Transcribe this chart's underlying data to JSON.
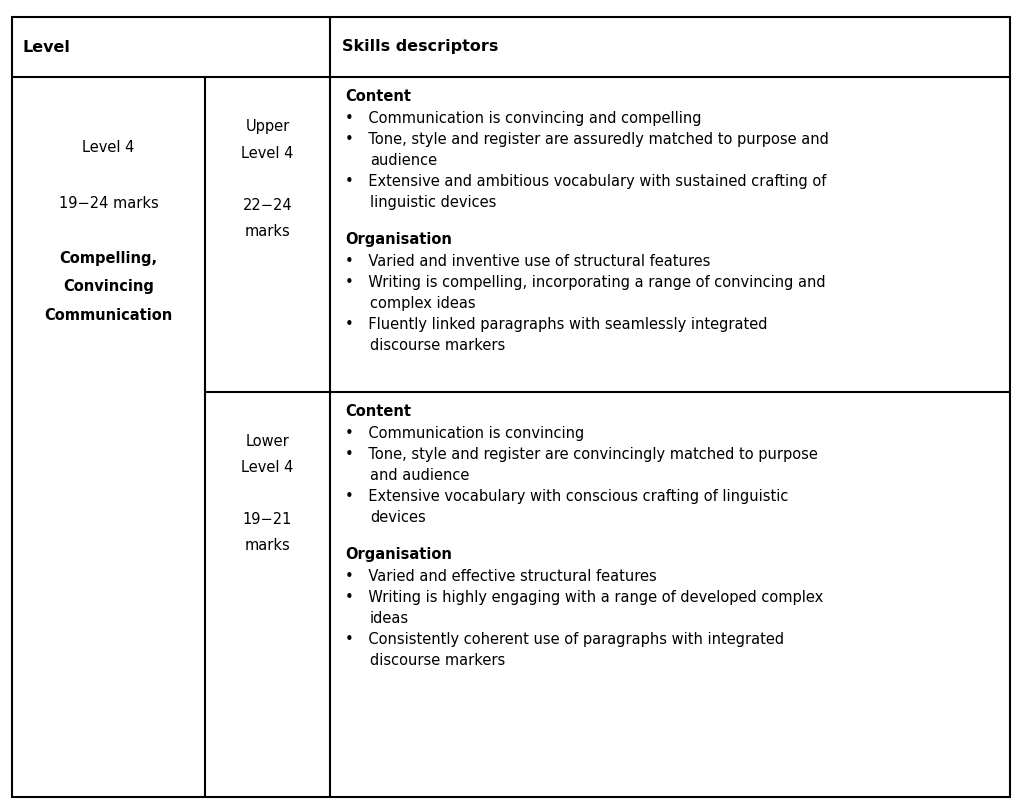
{
  "bg_color": "#ffffff",
  "line_color": "#000000",
  "line_width": 1.5,
  "col1_header": "Level",
  "col3_header": "Skills descriptors",
  "col1_lines": [
    "Level 4",
    "",
    "19−24 marks",
    "",
    "Compelling,",
    "Convincing",
    "Communication"
  ],
  "col1_bold": [
    "Compelling,",
    "Convincing",
    "Communication"
  ],
  "upper_sub_lines": [
    "Upper",
    "Level 4",
    "",
    "22−24",
    "marks"
  ],
  "lower_sub_lines": [
    "Lower",
    "Level 4",
    "",
    "19−21",
    "marks"
  ],
  "upper_content_title1": "Content",
  "upper_content_bullets1": [
    [
      "Communication is convincing and compelling"
    ],
    [
      "Tone, style and register are assuredly matched to purpose and",
      "audience"
    ],
    [
      "Extensive and ambitious vocabulary with sustained crafting of",
      "linguistic devices"
    ]
  ],
  "upper_content_title2": "Organisation",
  "upper_content_bullets2": [
    [
      "Varied and inventive use of structural features"
    ],
    [
      "Writing is compelling, incorporating a range of convincing and",
      "complex ideas"
    ],
    [
      "Fluently linked paragraphs with seamlessly integrated",
      "discourse markers"
    ]
  ],
  "lower_content_title1": "Content",
  "lower_content_bullets1": [
    [
      "Communication is convincing"
    ],
    [
      "Tone, style and register are convincingly matched to purpose",
      "and audience"
    ],
    [
      "Extensive vocabulary with conscious crafting of linguistic",
      "devices"
    ]
  ],
  "lower_content_title2": "Organisation",
  "lower_content_bullets2": [
    [
      "Varied and effective structural features"
    ],
    [
      "Writing is highly engaging with a range of developed complex",
      "ideas"
    ],
    [
      "Consistently coherent use of paragraphs with integrated",
      "discourse markers"
    ]
  ],
  "font_size_header": 11.5,
  "font_size_body": 10.5,
  "font_size_col12": 10.5
}
